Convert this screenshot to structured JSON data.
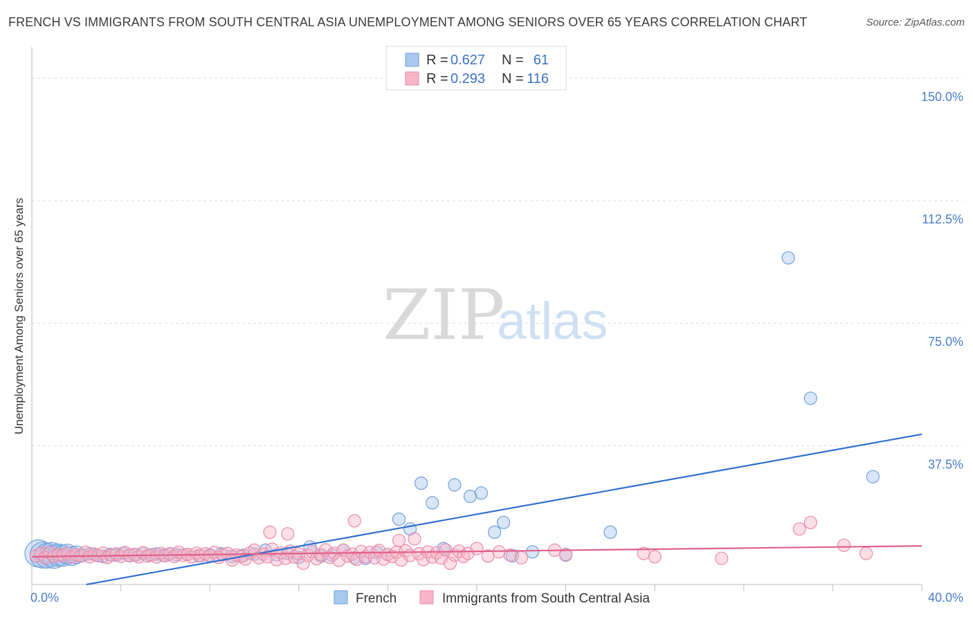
{
  "title": "FRENCH VS IMMIGRANTS FROM SOUTH CENTRAL ASIA UNEMPLOYMENT AMONG SENIORS OVER 65 YEARS CORRELATION CHART",
  "source": "Source: ZipAtlas.com",
  "watermark": {
    "zip": "ZIP",
    "atlas": "atlas"
  },
  "legend": {
    "rows": [
      {
        "r_label": "R = ",
        "r_value": "0.627",
        "n_label": "N = ",
        "n_value": "61",
        "color": "#a9c8f0"
      },
      {
        "r_label": "R = ",
        "r_value": "0.293",
        "n_label": "N = ",
        "n_value": "116",
        "color": "#f7b6c8"
      }
    ]
  },
  "chart_data": {
    "type": "scatter",
    "title": "FRENCH VS IMMIGRANTS FROM SOUTH CENTRAL ASIA UNEMPLOYMENT AMONG SENIORS OVER 65 YEARS CORRELATION CHART",
    "xlabel": "",
    "ylabel": "Unemployment Among Seniors over 65 years",
    "xlim": [
      0,
      40
    ],
    "ylim": [
      -5,
      157
    ],
    "x_ticks": [
      "0.0%",
      "40.0%"
    ],
    "y_ticks": [
      {
        "v": 37.5,
        "label": "37.5%"
      },
      {
        "v": 75,
        "label": "75.0%"
      },
      {
        "v": 112.5,
        "label": "112.5%"
      },
      {
        "v": 150,
        "label": "150.0%"
      }
    ],
    "grid": true,
    "legend_position": "top-center",
    "series": [
      {
        "name": "French",
        "color": "#a9c8f0",
        "stroke": "#6f9fd8",
        "trend": {
          "x": [
            0,
            40
          ],
          "y": [
            -8,
            41
          ],
          "color": "#2f6fd0"
        },
        "points": [
          [
            0.3,
            4.5
          ],
          [
            0.5,
            4.0
          ],
          [
            0.7,
            3.8
          ],
          [
            0.9,
            4.2
          ],
          [
            1.0,
            3.5
          ],
          [
            1.2,
            4.0
          ],
          [
            1.4,
            3.8
          ],
          [
            1.6,
            4.3
          ],
          [
            1.8,
            3.7
          ],
          [
            2.0,
            4.1
          ],
          [
            2.3,
            3.9
          ],
          [
            2.6,
            4.4
          ],
          [
            2.9,
            4.0
          ],
          [
            3.2,
            3.6
          ],
          [
            3.5,
            4.2
          ],
          [
            3.8,
            4.0
          ],
          [
            4.1,
            4.5
          ],
          [
            4.4,
            3.8
          ],
          [
            4.7,
            4.1
          ],
          [
            5.0,
            4.6
          ],
          [
            5.3,
            4.0
          ],
          [
            5.6,
            4.3
          ],
          [
            5.9,
            3.9
          ],
          [
            6.2,
            4.4
          ],
          [
            6.5,
            4.1
          ],
          [
            7.0,
            4.2
          ],
          [
            7.5,
            3.8
          ],
          [
            8.0,
            4.0
          ],
          [
            8.5,
            4.4
          ],
          [
            9.0,
            3.6
          ],
          [
            9.5,
            3.9
          ],
          [
            10.0,
            4.3
          ],
          [
            10.5,
            5.5
          ],
          [
            11.0,
            4.1
          ],
          [
            11.5,
            4.5
          ],
          [
            12.0,
            3.3
          ],
          [
            12.5,
            6.5
          ],
          [
            13.0,
            3.7
          ],
          [
            13.5,
            4.0
          ],
          [
            14.0,
            5.5
          ],
          [
            14.5,
            3.2
          ],
          [
            15.0,
            3.0
          ],
          [
            15.5,
            4.8
          ],
          [
            16.0,
            4.2
          ],
          [
            16.5,
            15.0
          ],
          [
            17.0,
            12.0
          ],
          [
            17.5,
            26.0
          ],
          [
            18.0,
            20.0
          ],
          [
            18.5,
            6.0
          ],
          [
            19.0,
            25.5
          ],
          [
            19.7,
            22.0
          ],
          [
            20.2,
            23.0
          ],
          [
            20.8,
            11.0
          ],
          [
            21.2,
            14.0
          ],
          [
            21.6,
            3.8
          ],
          [
            22.5,
            5.0
          ],
          [
            24.0,
            4.0
          ],
          [
            26.0,
            11.0
          ],
          [
            34.0,
            95.0
          ],
          [
            35.0,
            52.0
          ],
          [
            37.8,
            28.0
          ]
        ]
      },
      {
        "name": "Immigrants from South Central Asia",
        "color": "#f7b6c8",
        "stroke": "#e98aa8",
        "trend": {
          "x": [
            0,
            40
          ],
          "y": [
            3.5,
            6.8
          ],
          "color": "#e0608a"
        },
        "points": [
          [
            0.2,
            3.8
          ],
          [
            0.4,
            4.5
          ],
          [
            0.6,
            3.2
          ],
          [
            0.8,
            4.8
          ],
          [
            1.0,
            3.6
          ],
          [
            1.2,
            4.2
          ],
          [
            1.4,
            3.9
          ],
          [
            1.6,
            4.6
          ],
          [
            1.8,
            3.4
          ],
          [
            2.0,
            4.1
          ],
          [
            2.2,
            3.7
          ],
          [
            2.4,
            4.9
          ],
          [
            2.6,
            3.5
          ],
          [
            2.8,
            4.3
          ],
          [
            3.0,
            3.8
          ],
          [
            3.2,
            4.6
          ],
          [
            3.4,
            3.3
          ],
          [
            3.6,
            4.0
          ],
          [
            3.8,
            4.4
          ],
          [
            4.0,
            3.6
          ],
          [
            4.2,
            4.8
          ],
          [
            4.4,
            3.9
          ],
          [
            4.6,
            4.2
          ],
          [
            4.8,
            3.5
          ],
          [
            5.0,
            4.7
          ],
          [
            5.2,
            3.7
          ],
          [
            5.4,
            4.1
          ],
          [
            5.6,
            3.4
          ],
          [
            5.8,
            4.5
          ],
          [
            6.0,
            3.8
          ],
          [
            6.2,
            4.3
          ],
          [
            6.4,
            3.6
          ],
          [
            6.6,
            4.9
          ],
          [
            6.8,
            3.9
          ],
          [
            7.0,
            4.2
          ],
          [
            7.2,
            3.5
          ],
          [
            7.4,
            4.6
          ],
          [
            7.6,
            3.8
          ],
          [
            7.8,
            4.4
          ],
          [
            8.0,
            3.7
          ],
          [
            8.2,
            4.8
          ],
          [
            8.4,
            3.3
          ],
          [
            8.6,
            4.1
          ],
          [
            8.8,
            4.5
          ],
          [
            9.0,
            2.5
          ],
          [
            9.2,
            4.0
          ],
          [
            9.4,
            3.6
          ],
          [
            9.6,
            2.8
          ],
          [
            9.8,
            4.6
          ],
          [
            10.0,
            5.5
          ],
          [
            10.2,
            3.2
          ],
          [
            10.4,
            4.3
          ],
          [
            10.6,
            3.5
          ],
          [
            10.8,
            5.8
          ],
          [
            11.0,
            2.6
          ],
          [
            11.2,
            4.7
          ],
          [
            11.4,
            3.0
          ],
          [
            11.6,
            5.2
          ],
          [
            11.8,
            3.4
          ],
          [
            12.0,
            4.4
          ],
          [
            12.2,
            1.5
          ],
          [
            12.4,
            3.9
          ],
          [
            12.6,
            5.0
          ],
          [
            12.8,
            2.9
          ],
          [
            13.0,
            4.1
          ],
          [
            13.2,
            5.6
          ],
          [
            13.4,
            3.3
          ],
          [
            13.6,
            4.6
          ],
          [
            13.8,
            2.4
          ],
          [
            14.0,
            5.5
          ],
          [
            14.2,
            3.7
          ],
          [
            14.4,
            4.3
          ],
          [
            14.6,
            2.7
          ],
          [
            14.8,
            5.1
          ],
          [
            15.0,
            3.5
          ],
          [
            15.2,
            4.8
          ],
          [
            15.4,
            3.2
          ],
          [
            15.6,
            5.4
          ],
          [
            15.8,
            2.8
          ],
          [
            16.0,
            4.2
          ],
          [
            16.2,
            3.6
          ],
          [
            16.4,
            4.9
          ],
          [
            16.6,
            2.5
          ],
          [
            16.8,
            5.3
          ],
          [
            17.0,
            3.9
          ],
          [
            17.2,
            9.0
          ],
          [
            17.4,
            4.4
          ],
          [
            17.6,
            2.6
          ],
          [
            17.8,
            5.0
          ],
          [
            18.0,
            3.4
          ],
          [
            18.2,
            4.7
          ],
          [
            18.4,
            3.1
          ],
          [
            18.6,
            5.6
          ],
          [
            18.8,
            1.5
          ],
          [
            19.0,
            4.0
          ],
          [
            19.2,
            5.2
          ],
          [
            19.4,
            3.6
          ],
          [
            19.6,
            4.5
          ],
          [
            20.0,
            6.0
          ],
          [
            20.5,
            3.7
          ],
          [
            21.0,
            5.0
          ],
          [
            21.5,
            4.0
          ],
          [
            22.0,
            3.2
          ],
          [
            23.5,
            5.5
          ],
          [
            24.0,
            4.2
          ],
          [
            27.5,
            4.5
          ],
          [
            28.0,
            3.5
          ],
          [
            31.0,
            3.0
          ],
          [
            34.5,
            12.0
          ],
          [
            35.0,
            14.0
          ],
          [
            36.5,
            7.0
          ],
          [
            37.5,
            4.5
          ],
          [
            11.5,
            10.5
          ],
          [
            14.5,
            14.5
          ],
          [
            16.5,
            8.5
          ],
          [
            10.7,
            11.0
          ]
        ]
      }
    ]
  },
  "bottom_legend": [
    {
      "label": "French",
      "color": "#a9c8f0",
      "stroke": "#6f9fd8"
    },
    {
      "label": "Immigrants from South Central Asia",
      "color": "#f7b6c8",
      "stroke": "#e98aa8"
    }
  ]
}
